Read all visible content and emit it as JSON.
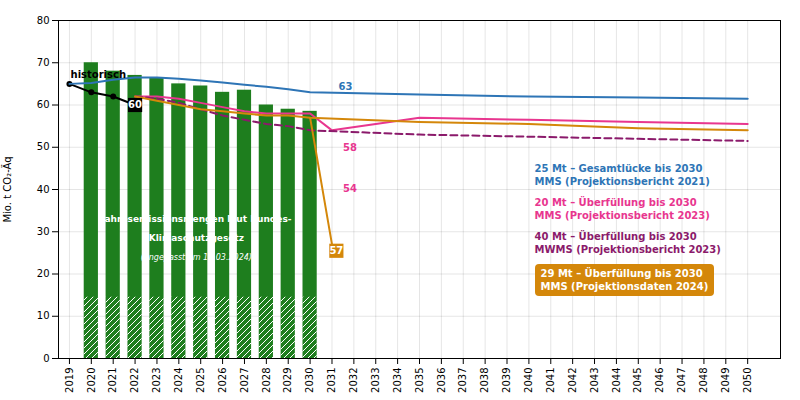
{
  "chart_data": {
    "type": "bar",
    "ylabel": "Mio. t CO₂-Äq",
    "xlim": [
      2018.5,
      2051.5
    ],
    "xticks": [
      2019,
      2020,
      2021,
      2022,
      2023,
      2024,
      2025,
      2026,
      2027,
      2028,
      2029,
      2030,
      2031,
      2032,
      2033,
      2034,
      2035,
      2036,
      2037,
      2038,
      2039,
      2040,
      2041,
      2042,
      2043,
      2044,
      2045,
      2046,
      2047,
      2048,
      2049,
      2050
    ],
    "ylim": [
      0,
      80
    ],
    "yticks": [
      0,
      10,
      20,
      30,
      40,
      50,
      60,
      70,
      80
    ],
    "grid": true,
    "series": [
      {
        "type": "bar",
        "color": "#1e7e1e",
        "x": [
          2020,
          2021,
          2022,
          2023,
          2024,
          2025,
          2026,
          2027,
          2028,
          2029,
          2030
        ],
        "values": [
          70,
          68,
          67,
          66.5,
          65,
          64.5,
          63,
          63.5,
          60,
          59,
          58.5
        ]
      },
      {
        "type": "bar",
        "color": "#ffffff",
        "x": [
          2020,
          2021,
          2022,
          2023,
          2024,
          2025,
          2026,
          2027,
          2028,
          2029,
          2030
        ],
        "values": [
          14.5,
          14.5,
          14.5,
          14.5,
          14.5,
          14.5,
          14.5,
          14.5,
          14.5,
          14.5,
          14.5
        ]
      },
      {
        "type": "line",
        "color": "#000000",
        "marker": "circle",
        "x": [
          2019,
          2020,
          2021,
          2022
        ],
        "values": [
          65,
          63,
          62,
          60
        ]
      },
      {
        "type": "line",
        "color": "#2e75b6",
        "x": [
          2019,
          2020,
          2021,
          2022,
          2023,
          2024,
          2025,
          2026,
          2027,
          2028,
          2029,
          2030,
          2035,
          2040,
          2045,
          2050
        ],
        "values": [
          65.0,
          65.2,
          66.0,
          66.5,
          66.5,
          66.2,
          65.8,
          65.3,
          64.8,
          64.3,
          63.7,
          63.0,
          62.5,
          62.0,
          61.8,
          61.5
        ]
      },
      {
        "type": "line",
        "color": "#e8368f",
        "x": [
          2022,
          2023,
          2024,
          2025,
          2026,
          2027,
          2028,
          2029,
          2030,
          2031,
          2035,
          2040,
          2045,
          2050
        ],
        "values": [
          62.0,
          62.0,
          61.5,
          60.5,
          59.5,
          58.5,
          58.0,
          58.0,
          58.0,
          54.0,
          57.0,
          56.5,
          56.0,
          55.5
        ]
      },
      {
        "type": "line",
        "color": "#8b1a6b",
        "line_style": "dashed",
        "x": [
          2022,
          2023,
          2024,
          2025,
          2026,
          2027,
          2028,
          2029,
          2030,
          2035,
          2040,
          2045,
          2050
        ],
        "values": [
          62.0,
          61.5,
          60.5,
          59.0,
          57.5,
          56.5,
          55.5,
          55.0,
          54.0,
          53.0,
          52.5,
          52.0,
          51.5
        ]
      },
      {
        "type": "line",
        "color": "#d4870a",
        "x": [
          2022,
          2023,
          2024,
          2025,
          2026,
          2027,
          2028,
          2029,
          2030,
          2035,
          2040,
          2045,
          2050
        ],
        "values": [
          62.0,
          61.0,
          60.0,
          59.0,
          58.5,
          58.0,
          57.5,
          57.5,
          57.0,
          56.0,
          55.5,
          54.5,
          54.0
        ]
      },
      {
        "type": "line",
        "color": "#d4870a",
        "x": [
          2030,
          2031
        ],
        "values": [
          57.0,
          27.0
        ]
      }
    ],
    "annotations": [
      {
        "text": "historisch",
        "x": 2019.05,
        "y": 66.5,
        "color": "#000000"
      },
      {
        "text": "63",
        "x": 2031.3,
        "y": 63.5,
        "color": "#2e75b6"
      },
      {
        "text": "58",
        "x": 2031.5,
        "y": 49.0,
        "color": "#e8368f"
      },
      {
        "text": "54",
        "x": 2031.5,
        "y": 39.5,
        "color": "#e8368f"
      }
    ],
    "value_boxes": [
      {
        "text": "60",
        "x": 2022,
        "y": 60,
        "color": "#000000"
      },
      {
        "text": "57",
        "x": 2031.2,
        "y": 25.5,
        "color": "#d4870a"
      }
    ],
    "bar_note": {
      "x": 2024.8,
      "color": "#ffffff",
      "lines": [
        {
          "text": "Jahresemissionsmengen laut Bundes-",
          "y": 33
        },
        {
          "text": "Klimaschutzgesetz",
          "y": 28.5
        },
        {
          "text": "(angepasst am 15.03.2024)",
          "y": 24.0
        }
      ]
    },
    "notes": [
      {
        "lines": [
          "25 Mt – Gesamtlücke bis 2030",
          "MMS (Projektionsbericht 2021)"
        ],
        "color": "#2e75b6"
      },
      {
        "lines": [
          "20 Mt – Überfüllung bis 2030",
          "MMS (Projektionsbericht 2023)"
        ],
        "color": "#e8368f"
      },
      {
        "lines": [
          "40 Mt – Überfüllung bis 2030",
          "MWMS (Projektionsbericht 2023)"
        ],
        "color": "#8b1a6b"
      },
      {
        "lines": [
          "29 Mt – Überfüllung bis 2030",
          "MMS (Projektionsdaten 2024)"
        ],
        "color": "#ffffff",
        "background": "#d4870a"
      }
    ]
  }
}
